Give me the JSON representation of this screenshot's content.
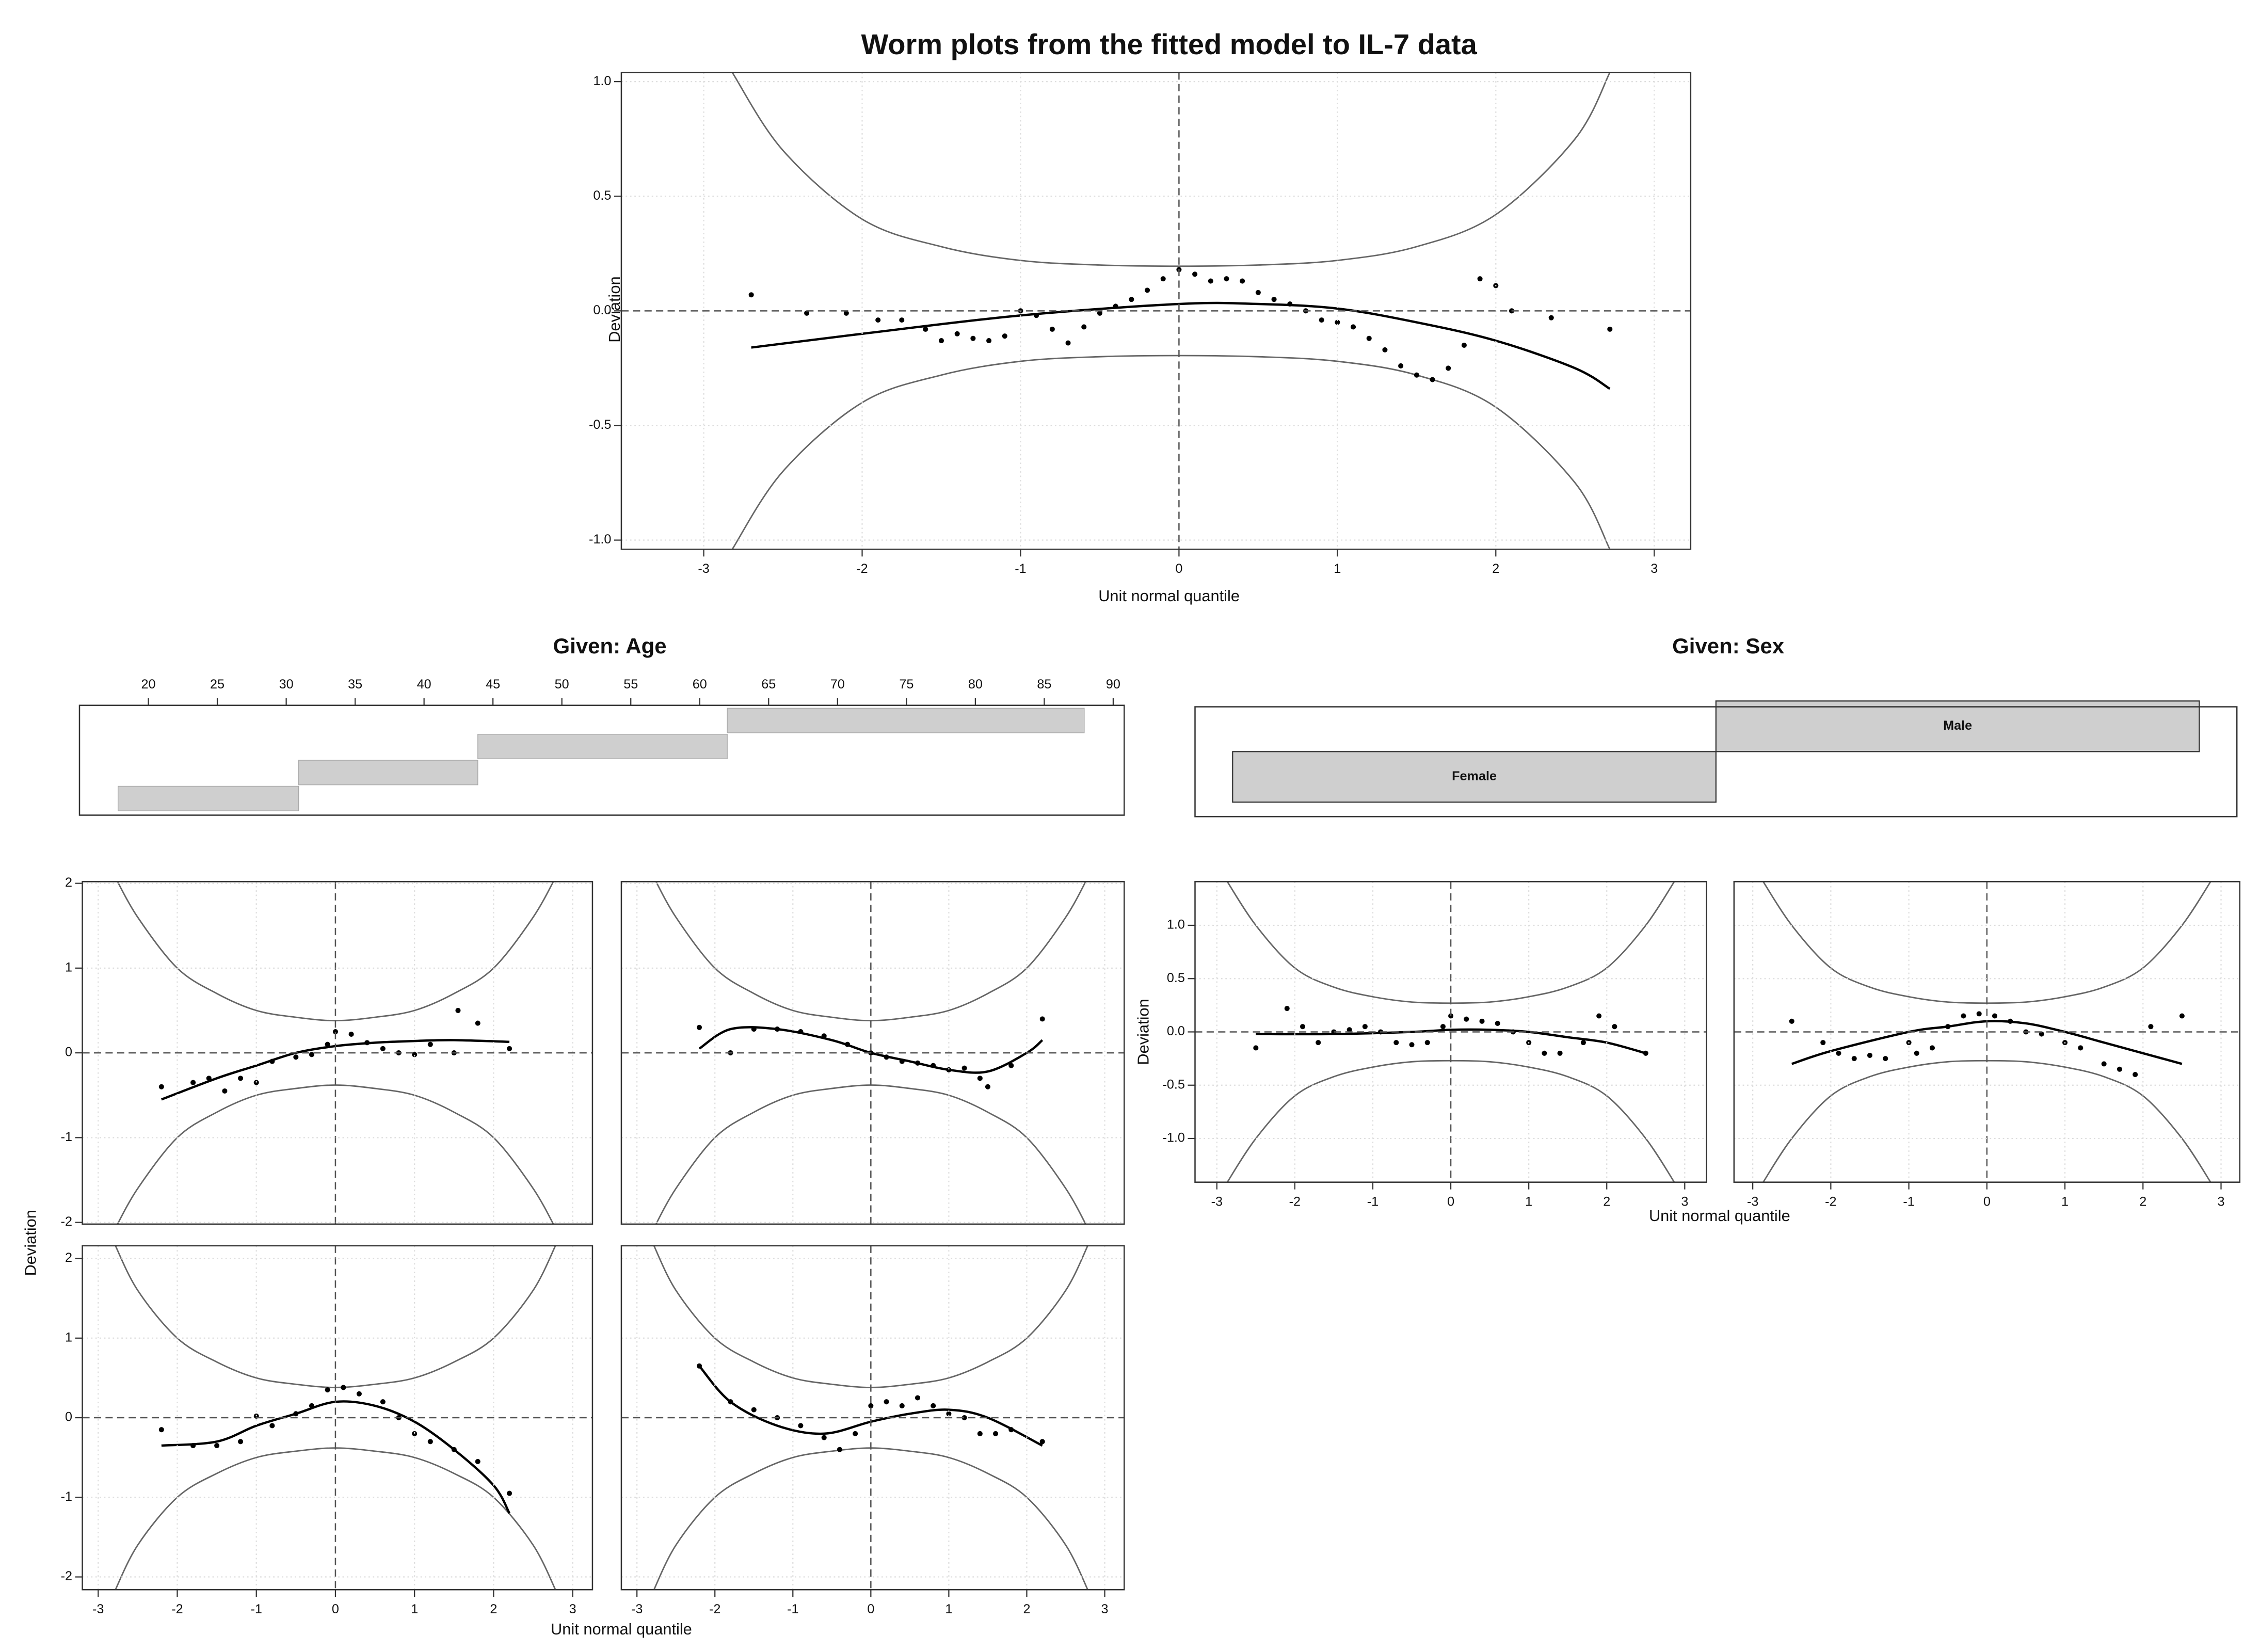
{
  "chart_data": [
    {
      "type": "worm",
      "title": "Worm plots from the fitted model to IL-7 data",
      "xlabel": "Unit normal quantile",
      "ylabel": "Deviation",
      "xlim": [
        -3.52,
        3.23
      ],
      "ylim": [
        -1.04,
        1.04
      ],
      "xticks": [
        -3,
        -2,
        -1,
        0,
        1,
        2,
        3
      ],
      "yticks": [
        {
          "value": -1,
          "label": "-1.0"
        },
        -0.5,
        {
          "value": 0,
          "label": "0.0"
        },
        0.5,
        {
          "value": 1,
          "label": "1.0"
        }
      ],
      "grid": true,
      "points": {
        "x": [
          -2.7,
          -2.35,
          -2.1,
          -1.9,
          -1.75,
          -1.6,
          -1.5,
          -1.4,
          -1.3,
          -1.2,
          -1.1,
          -1.0,
          -0.9,
          -0.8,
          -0.7,
          -0.6,
          -0.5,
          -0.4,
          -0.3,
          -0.2,
          -0.1,
          0,
          0.1,
          0.2,
          0.3,
          0.4,
          0.5,
          0.6,
          0.7,
          0.8,
          0.9,
          1.0,
          1.1,
          1.2,
          1.3,
          1.4,
          1.5,
          1.6,
          1.7,
          1.8,
          1.9,
          2.0,
          2.1,
          2.35,
          2.72
        ],
        "values": [
          0.07,
          -0.01,
          -0.01,
          -0.04,
          -0.04,
          -0.08,
          -0.13,
          -0.1,
          -0.12,
          -0.13,
          -0.11,
          0.0,
          -0.02,
          -0.08,
          -0.14,
          -0.07,
          -0.01,
          0.02,
          0.05,
          0.09,
          0.14,
          0.18,
          0.16,
          0.13,
          0.14,
          0.13,
          0.08,
          0.05,
          0.03,
          0.0,
          -0.04,
          -0.05,
          -0.07,
          -0.12,
          -0.17,
          -0.24,
          -0.28,
          -0.3,
          -0.25,
          -0.15,
          0.14,
          0.11,
          0.0,
          -0.03,
          -0.08
        ]
      },
      "fit": {
        "x": [
          -2.7,
          -2,
          -1,
          0,
          0.5,
          1,
          1.5,
          2,
          2.5,
          2.72
        ],
        "values": [
          -0.16,
          -0.1,
          -0.02,
          0.03,
          0.03,
          0.01,
          -0.05,
          -0.13,
          -0.25,
          -0.34
        ]
      },
      "band_upper": {
        "x": [
          -2.82,
          -2.5,
          -2,
          -1.5,
          -1,
          -0.5,
          0,
          0.5,
          1,
          1.5,
          2,
          2.5,
          2.72
        ],
        "values": [
          1.04,
          0.7,
          0.4,
          0.28,
          0.22,
          0.2,
          0.195,
          0.2,
          0.22,
          0.28,
          0.42,
          0.75,
          1.04
        ]
      },
      "band_lower": {
        "x": [
          -2.82,
          -2.5,
          -2,
          -1.5,
          -1,
          -0.5,
          0,
          0.5,
          1,
          1.5,
          2,
          2.5,
          2.72
        ],
        "values": [
          -1.04,
          -0.7,
          -0.4,
          -0.28,
          -0.22,
          -0.2,
          -0.195,
          -0.2,
          -0.22,
          -0.28,
          -0.42,
          -0.75,
          -1.04
        ]
      }
    },
    {
      "type": "shingle",
      "title": "Given: Age",
      "xlim": [
        15,
        90.8
      ],
      "xticks": [
        20,
        25,
        30,
        35,
        40,
        45,
        50,
        55,
        60,
        65,
        70,
        75,
        80,
        85,
        90
      ],
      "intervals": [
        [
          17.8,
          30.9
        ],
        [
          30.9,
          43.9
        ],
        [
          43.9,
          62
        ],
        [
          62,
          87.9
        ]
      ]
    },
    {
      "type": "levels",
      "title": "Given: Sex",
      "levels": [
        "Female",
        "Male"
      ]
    },
    {
      "type": "worm",
      "xlim": [
        -3.2,
        3.25
      ],
      "ylim": [
        -2.02,
        2.02
      ],
      "xticks": [
        -3,
        -2,
        -1,
        0,
        1,
        2,
        3
      ],
      "yticks": [
        -2,
        -1,
        0,
        1,
        2
      ],
      "grid": true,
      "points": {
        "x": [
          -2.2,
          -1.8,
          -1.6,
          -1.4,
          -1.2,
          -1.0,
          -0.8,
          -0.5,
          -0.3,
          -0.1,
          0,
          0.2,
          0.4,
          0.6,
          0.8,
          1.0,
          1.2,
          1.5,
          1.55,
          1.8,
          2.2
        ],
        "values": [
          -0.4,
          -0.35,
          -0.3,
          -0.45,
          -0.3,
          -0.35,
          -0.1,
          -0.05,
          -0.02,
          0.1,
          0.25,
          0.22,
          0.12,
          0.05,
          0.0,
          -0.02,
          0.1,
          0.0,
          0.5,
          0.35,
          0.05
        ]
      },
      "fit": {
        "x": [
          -2.2,
          -1.5,
          -1,
          -0.5,
          0,
          0.5,
          1,
          1.5,
          2.2
        ],
        "values": [
          -0.55,
          -0.3,
          -0.15,
          0.0,
          0.08,
          0.12,
          0.14,
          0.15,
          0.13
        ]
      },
      "band_upper": {
        "x": [
          -2.8,
          -2.5,
          -2,
          -1.5,
          -1,
          -0.5,
          0,
          0.5,
          1,
          1.5,
          2,
          2.5,
          2.8
        ],
        "values": [
          2.1,
          1.6,
          1.0,
          0.7,
          0.5,
          0.42,
          0.38,
          0.42,
          0.5,
          0.7,
          1.0,
          1.6,
          2.1
        ]
      },
      "band_lower": {
        "x": [
          -2.8,
          -2.5,
          -2,
          -1.5,
          -1,
          -0.5,
          0,
          0.5,
          1,
          1.5,
          2,
          2.5,
          2.8
        ],
        "values": [
          -2.1,
          -1.6,
          -1.0,
          -0.7,
          -0.5,
          -0.42,
          -0.38,
          -0.42,
          -0.5,
          -0.7,
          -1.0,
          -1.6,
          -2.1
        ]
      }
    },
    {
      "type": "worm",
      "xlim": [
        -3.2,
        3.25
      ],
      "ylim": [
        -2.02,
        2.02
      ],
      "xticks": [
        -3,
        -2,
        -1,
        0,
        1,
        2,
        3
      ],
      "yticks": [
        -2,
        -1,
        0,
        1,
        2
      ],
      "grid": true,
      "points": {
        "x": [
          -2.2,
          -1.8,
          -1.5,
          -1.2,
          -0.9,
          -0.6,
          -0.3,
          0,
          0.2,
          0.4,
          0.6,
          0.8,
          1.0,
          1.2,
          1.4,
          1.5,
          1.8,
          2.2
        ],
        "values": [
          0.3,
          0.0,
          0.28,
          0.28,
          0.25,
          0.2,
          0.1,
          0.0,
          -0.05,
          -0.1,
          -0.12,
          -0.15,
          -0.2,
          -0.18,
          -0.3,
          -0.4,
          -0.15,
          0.4
        ]
      },
      "fit": {
        "x": [
          -2.2,
          -1.8,
          -1.2,
          -0.5,
          0,
          0.5,
          1,
          1.5,
          2,
          2.2
        ],
        "values": [
          0.05,
          0.28,
          0.28,
          0.15,
          0.0,
          -0.1,
          -0.2,
          -0.22,
          0.0,
          0.15
        ]
      },
      "band_upper": {
        "x": [
          -2.8,
          -2.5,
          -2,
          -1.5,
          -1,
          -0.5,
          0,
          0.5,
          1,
          1.5,
          2,
          2.5,
          2.8
        ],
        "values": [
          2.1,
          1.6,
          1.0,
          0.7,
          0.5,
          0.42,
          0.38,
          0.42,
          0.5,
          0.7,
          1.0,
          1.6,
          2.1
        ]
      },
      "band_lower": {
        "x": [
          -2.8,
          -2.5,
          -2,
          -1.5,
          -1,
          -0.5,
          0,
          0.5,
          1,
          1.5,
          2,
          2.5,
          2.8
        ],
        "values": [
          -2.1,
          -1.6,
          -1.0,
          -0.7,
          -0.5,
          -0.42,
          -0.38,
          -0.42,
          -0.5,
          -0.7,
          -1.0,
          -1.6,
          -2.1
        ]
      }
    },
    {
      "type": "worm",
      "xlim": [
        -3.2,
        3.25
      ],
      "ylim": [
        -2.16,
        2.16
      ],
      "xticks": [
        -3,
        -2,
        -1,
        0,
        1,
        2,
        3
      ],
      "yticks": [
        -2,
        -1,
        0,
        1,
        2
      ],
      "grid": true,
      "points": {
        "x": [
          -2.2,
          -1.8,
          -1.5,
          -1.2,
          -1.0,
          -0.8,
          -0.5,
          -0.3,
          -0.1,
          0.1,
          0.3,
          0.6,
          0.8,
          1.0,
          1.2,
          1.5,
          1.8,
          2.2
        ],
        "values": [
          -0.15,
          -0.35,
          -0.35,
          -0.3,
          0.02,
          -0.1,
          0.05,
          0.15,
          0.35,
          0.38,
          0.3,
          0.2,
          0.0,
          -0.2,
          -0.3,
          -0.4,
          -0.55,
          -0.95
        ]
      },
      "fit": {
        "x": [
          -2.2,
          -1.5,
          -1,
          -0.5,
          0,
          0.5,
          1,
          1.5,
          2,
          2.2
        ],
        "values": [
          -0.35,
          -0.3,
          -0.1,
          0.05,
          0.2,
          0.15,
          -0.05,
          -0.4,
          -0.85,
          -1.2
        ]
      },
      "band_upper": {
        "x": [
          -2.8,
          -2.5,
          -2,
          -1.5,
          -1,
          -0.5,
          0,
          0.5,
          1,
          1.5,
          2,
          2.5,
          2.8
        ],
        "values": [
          2.2,
          1.6,
          1.0,
          0.7,
          0.5,
          0.42,
          0.38,
          0.42,
          0.5,
          0.7,
          1.0,
          1.6,
          2.2
        ]
      },
      "band_lower": {
        "x": [
          -2.8,
          -2.5,
          -2,
          -1.5,
          -1,
          -0.5,
          0,
          0.5,
          1,
          1.5,
          2,
          2.5,
          2.8
        ],
        "values": [
          -2.2,
          -1.6,
          -1.0,
          -0.7,
          -0.5,
          -0.42,
          -0.38,
          -0.42,
          -0.5,
          -0.7,
          -1.0,
          -1.6,
          -2.2
        ]
      }
    },
    {
      "type": "worm",
      "xlim": [
        -3.2,
        3.25
      ],
      "ylim": [
        -2.16,
        2.16
      ],
      "xticks": [
        -3,
        -2,
        -1,
        0,
        1,
        2,
        3
      ],
      "yticks": [
        -2,
        -1,
        0,
        1,
        2
      ],
      "grid": true,
      "points": {
        "x": [
          -2.2,
          -1.8,
          -1.5,
          -1.2,
          -0.9,
          -0.6,
          -0.4,
          -0.2,
          0,
          0.2,
          0.4,
          0.6,
          0.8,
          1.0,
          1.2,
          1.4,
          1.6,
          1.8,
          2.2
        ],
        "values": [
          0.65,
          0.2,
          0.1,
          0.0,
          -0.1,
          -0.25,
          -0.4,
          -0.2,
          0.15,
          0.2,
          0.15,
          0.25,
          0.15,
          0.05,
          0.0,
          -0.2,
          -0.2,
          -0.15,
          -0.3
        ]
      },
      "fit": {
        "x": [
          -2.2,
          -1.8,
          -1.2,
          -0.6,
          0,
          0.5,
          1,
          1.5,
          2.2
        ],
        "values": [
          0.65,
          0.2,
          -0.1,
          -0.2,
          -0.05,
          0.05,
          0.1,
          0.0,
          -0.35
        ]
      },
      "band_upper": {
        "x": [
          -2.8,
          -2.5,
          -2,
          -1.5,
          -1,
          -0.5,
          0,
          0.5,
          1,
          1.5,
          2,
          2.5,
          2.8
        ],
        "values": [
          2.2,
          1.6,
          1.0,
          0.7,
          0.5,
          0.42,
          0.38,
          0.42,
          0.5,
          0.7,
          1.0,
          1.6,
          2.2
        ]
      },
      "band_lower": {
        "x": [
          -2.8,
          -2.5,
          -2,
          -1.5,
          -1,
          -0.5,
          0,
          0.5,
          1,
          1.5,
          2,
          2.5,
          2.8
        ],
        "values": [
          -2.2,
          -1.6,
          -1.0,
          -0.7,
          -0.5,
          -0.42,
          -0.38,
          -0.42,
          -0.5,
          -0.7,
          -1.0,
          -1.6,
          -2.2
        ]
      }
    },
    {
      "type": "worm",
      "xlim": [
        -3.28,
        3.28
      ],
      "ylim": [
        -1.41,
        1.41
      ],
      "xticks": [
        -3,
        -2,
        -1,
        0,
        1,
        2,
        3
      ],
      "yticks": [
        {
          "value": -1,
          "label": "-1.0"
        },
        -0.5,
        {
          "value": 0,
          "label": "0.0"
        },
        0.5,
        {
          "value": 1,
          "label": "1.0"
        }
      ],
      "grid": true,
      "points": {
        "x": [
          -2.5,
          -2.1,
          -1.9,
          -1.7,
          -1.5,
          -1.3,
          -1.1,
          -0.9,
          -0.7,
          -0.5,
          -0.3,
          -0.1,
          0,
          0.2,
          0.4,
          0.6,
          0.8,
          1.0,
          1.2,
          1.4,
          1.7,
          1.9,
          2.1,
          2.5
        ],
        "values": [
          -0.15,
          0.22,
          0.05,
          -0.1,
          0.0,
          0.02,
          0.05,
          0.0,
          -0.1,
          -0.12,
          -0.1,
          0.05,
          0.15,
          0.12,
          0.1,
          0.08,
          0.0,
          -0.1,
          -0.2,
          -0.2,
          -0.1,
          0.15,
          0.05,
          -0.2
        ]
      },
      "fit": {
        "x": [
          -2.5,
          -1.5,
          -0.5,
          0,
          0.5,
          1,
          1.5,
          2,
          2.5
        ],
        "values": [
          -0.02,
          -0.02,
          0.0,
          0.02,
          0.02,
          0.0,
          -0.05,
          -0.1,
          -0.2
        ]
      },
      "band_upper": {
        "x": [
          -2.9,
          -2.5,
          -2,
          -1.5,
          -1,
          -0.5,
          0,
          0.5,
          1,
          1.5,
          2,
          2.5,
          2.9
        ],
        "values": [
          1.45,
          1.0,
          0.6,
          0.42,
          0.33,
          0.28,
          0.27,
          0.28,
          0.33,
          0.42,
          0.6,
          1.0,
          1.45
        ]
      },
      "band_lower": {
        "x": [
          -2.9,
          -2.5,
          -2,
          -1.5,
          -1,
          -0.5,
          0,
          0.5,
          1,
          1.5,
          2,
          2.5,
          2.9
        ],
        "values": [
          -1.45,
          -1.0,
          -0.6,
          -0.42,
          -0.33,
          -0.28,
          -0.27,
          -0.28,
          -0.33,
          -0.42,
          -0.6,
          -1.0,
          -1.45
        ]
      }
    },
    {
      "type": "worm",
      "xlim": [
        -3.24,
        3.24
      ],
      "ylim": [
        -1.41,
        1.41
      ],
      "xticks": [
        -3,
        -2,
        -1,
        0,
        1,
        2,
        3
      ],
      "yticks": [
        {
          "value": -1,
          "label": "-1.0"
        },
        -0.5,
        {
          "value": 0,
          "label": "0.0"
        },
        0.5,
        {
          "value": 1,
          "label": "1.0"
        }
      ],
      "grid": true,
      "points": {
        "x": [
          -2.5,
          -2.1,
          -1.9,
          -1.7,
          -1.5,
          -1.3,
          -1.0,
          -0.9,
          -0.7,
          -0.5,
          -0.3,
          -0.1,
          0.1,
          0.3,
          0.5,
          0.7,
          1.0,
          1.2,
          1.5,
          1.7,
          1.9,
          2.1,
          2.5
        ],
        "values": [
          0.1,
          -0.1,
          -0.2,
          -0.25,
          -0.22,
          -0.25,
          -0.1,
          -0.2,
          -0.15,
          0.05,
          0.15,
          0.17,
          0.15,
          0.1,
          0.0,
          -0.02,
          -0.1,
          -0.15,
          -0.3,
          -0.35,
          -0.4,
          0.05,
          0.15
        ]
      },
      "fit": {
        "x": [
          -2.5,
          -2,
          -1,
          -0.5,
          0,
          0.5,
          1,
          1.5,
          2,
          2.5
        ],
        "values": [
          -0.3,
          -0.18,
          0.0,
          0.05,
          0.1,
          0.08,
          0.0,
          -0.1,
          -0.2,
          -0.3
        ]
      },
      "band_upper": {
        "x": [
          -2.9,
          -2.5,
          -2,
          -1.5,
          -1,
          -0.5,
          0,
          0.5,
          1,
          1.5,
          2,
          2.5,
          2.9
        ],
        "values": [
          1.45,
          1.0,
          0.6,
          0.42,
          0.33,
          0.28,
          0.27,
          0.28,
          0.33,
          0.42,
          0.6,
          1.0,
          1.45
        ]
      },
      "band_lower": {
        "x": [
          -2.9,
          -2.5,
          -2,
          -1.5,
          -1,
          -0.5,
          0,
          0.5,
          1,
          1.5,
          2,
          2.5,
          2.9
        ],
        "values": [
          -1.45,
          -1.0,
          -0.6,
          -0.42,
          -0.33,
          -0.28,
          -0.27,
          -0.28,
          -0.33,
          -0.42,
          -0.6,
          -1.0,
          -1.45
        ]
      }
    }
  ],
  "panel_labels": {
    "age": {
      "xlabel": "Unit normal quantile",
      "ylabel": "Deviation"
    },
    "sex": {
      "xlabel": "Unit normal quantile",
      "ylabel": "Deviation"
    }
  }
}
